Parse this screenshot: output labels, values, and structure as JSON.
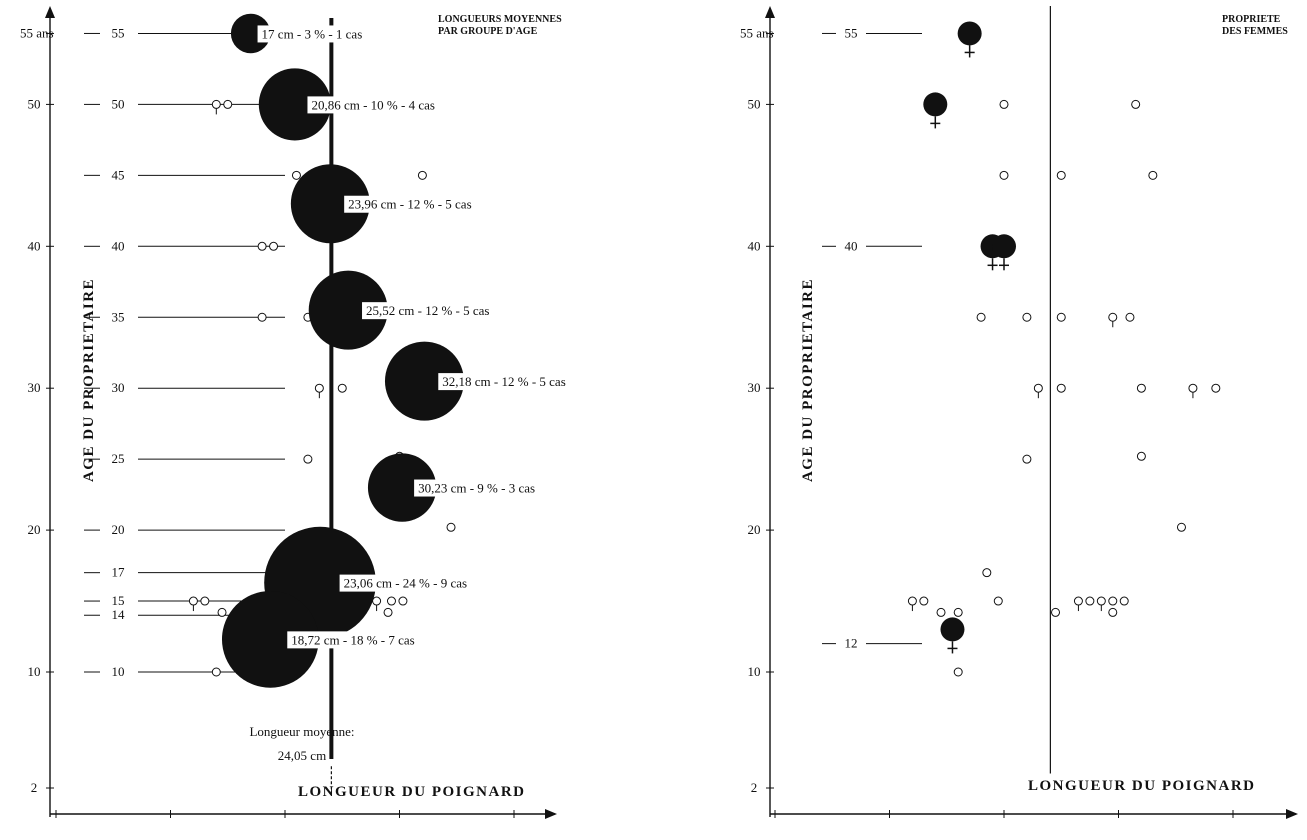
{
  "chart_data": [
    {
      "type": "scatter",
      "title": "LONGUEURS MOYENNES PAR GROUPE D'AGE",
      "xlabel": "LONGUEUR DU POIGNARD",
      "ylabel": "AGE DU PROPRIETAIRE",
      "x_unit": "cm",
      "y_unit": "ans",
      "xlim": [
        0,
        40
      ],
      "ylim": [
        0,
        55
      ],
      "x_ticks": [
        "0",
        "10",
        "20",
        "30",
        "40 cm"
      ],
      "y_ticks": [
        "2",
        "10",
        "20",
        "30",
        "40",
        "50",
        "55 ans"
      ],
      "mean_line": {
        "x": 24.05,
        "label": "Longueur moyenne:",
        "value_label": "24,05 cm"
      },
      "age_markers": [
        {
          "age": 55,
          "label": "55"
        },
        {
          "age": 50,
          "label": "50"
        },
        {
          "age": 45,
          "label": "45"
        },
        {
          "age": 40,
          "label": "40"
        },
        {
          "age": 35,
          "label": "35"
        },
        {
          "age": 30,
          "label": "30"
        },
        {
          "age": 25,
          "label": "25"
        },
        {
          "age": 20,
          "label": "20"
        },
        {
          "age": 17,
          "label": "17"
        },
        {
          "age": 15,
          "label": "15"
        },
        {
          "age": 14,
          "label": "14"
        },
        {
          "age": 10,
          "label": "10"
        }
      ],
      "group_means": [
        {
          "age": 55,
          "length": 17.0,
          "percent": 3,
          "cases": 1,
          "label": "17 cm - 3 % - 1 cas"
        },
        {
          "age": 50,
          "length": 20.86,
          "percent": 10,
          "cases": 4,
          "label": "20,86 cm - 10 % - 4 cas"
        },
        {
          "age": 43,
          "length": 23.96,
          "percent": 12,
          "cases": 5,
          "label": "23,96 cm - 12 % - 5 cas"
        },
        {
          "age": 35.5,
          "length": 25.52,
          "percent": 12,
          "cases": 5,
          "label": "25,52 cm - 12 % - 5 cas"
        },
        {
          "age": 30.5,
          "length": 32.18,
          "percent": 12,
          "cases": 5,
          "label": "32,18 cm - 12 % - 5 cas"
        },
        {
          "age": 23,
          "length": 30.23,
          "percent": 9,
          "cases": 3,
          "label": "30,23 cm - 9 % - 3 cas"
        },
        {
          "age": 16.3,
          "length": 23.06,
          "percent": 24,
          "cases": 9,
          "label": "23,06 cm - 24 % - 9 cas"
        },
        {
          "age": 12.3,
          "length": 18.72,
          "percent": 18,
          "cases": 7,
          "label": "18,72 cm - 18 % - 7 cas"
        }
      ],
      "points": [
        {
          "x": 14,
          "y": 50,
          "female": true
        },
        {
          "x": 15,
          "y": 50,
          "female": false
        },
        {
          "x": 21,
          "y": 45,
          "female": false
        },
        {
          "x": 25,
          "y": 45,
          "female": false
        },
        {
          "x": 32,
          "y": 45,
          "female": false
        },
        {
          "x": 18,
          "y": 40,
          "female": false
        },
        {
          "x": 19,
          "y": 40,
          "female": false
        },
        {
          "x": 18,
          "y": 35,
          "female": false
        },
        {
          "x": 22,
          "y": 35,
          "female": false
        },
        {
          "x": 23,
          "y": 30,
          "female": true
        },
        {
          "x": 25,
          "y": 30,
          "female": false
        },
        {
          "x": 22,
          "y": 25,
          "female": false
        },
        {
          "x": 30,
          "y": 25.2,
          "female": false
        },
        {
          "x": 34.5,
          "y": 20.2,
          "female": false
        },
        {
          "x": 20,
          "y": 17,
          "female": false
        },
        {
          "x": 12,
          "y": 15,
          "female": true
        },
        {
          "x": 13,
          "y": 15,
          "female": false
        },
        {
          "x": 14.5,
          "y": 14.2,
          "female": false
        },
        {
          "x": 26,
          "y": 15,
          "female": true
        },
        {
          "x": 27,
          "y": 15,
          "female": false
        },
        {
          "x": 28,
          "y": 15,
          "female": true
        },
        {
          "x": 29.3,
          "y": 15,
          "female": false
        },
        {
          "x": 30.3,
          "y": 15,
          "female": false
        },
        {
          "x": 29,
          "y": 14.2,
          "female": false
        },
        {
          "x": 14,
          "y": 10,
          "female": false
        }
      ]
    },
    {
      "type": "scatter",
      "title": "PROPRIETE DES FEMMES",
      "xlabel": "LONGUEUR DU POIGNARD",
      "ylabel": "AGE DU PROPRIETAIRE",
      "x_unit": "cm",
      "y_unit": "ans",
      "xlim": [
        0,
        40
      ],
      "ylim": [
        0,
        55
      ],
      "x_ticks": [
        "0",
        "10",
        "20",
        "30",
        "40 cm"
      ],
      "y_ticks": [
        "2",
        "10",
        "20",
        "30",
        "40",
        "50",
        "55 ans"
      ],
      "mean_line": {
        "x": 24.05
      },
      "age_markers": [
        {
          "age": 55,
          "label": "55"
        },
        {
          "age": 40,
          "label": "40"
        },
        {
          "age": 12,
          "label": "12"
        }
      ],
      "women": [
        {
          "x": 17,
          "y": 55
        },
        {
          "x": 14,
          "y": 50
        },
        {
          "x": 19,
          "y": 40
        },
        {
          "x": 20,
          "y": 40
        },
        {
          "x": 15.5,
          "y": 13
        }
      ],
      "points": [
        {
          "x": 20,
          "y": 50,
          "female": false
        },
        {
          "x": 31.5,
          "y": 50,
          "female": false
        },
        {
          "x": 20,
          "y": 45,
          "female": false
        },
        {
          "x": 25,
          "y": 45,
          "female": false
        },
        {
          "x": 33,
          "y": 45,
          "female": false
        },
        {
          "x": 18,
          "y": 35,
          "female": false
        },
        {
          "x": 22,
          "y": 35,
          "female": false
        },
        {
          "x": 25,
          "y": 35,
          "female": false
        },
        {
          "x": 29.5,
          "y": 35,
          "female": true
        },
        {
          "x": 31,
          "y": 35,
          "female": false
        },
        {
          "x": 23,
          "y": 30,
          "female": true
        },
        {
          "x": 25,
          "y": 30,
          "female": false
        },
        {
          "x": 32,
          "y": 30,
          "female": false
        },
        {
          "x": 36.5,
          "y": 30,
          "female": true
        },
        {
          "x": 38.5,
          "y": 30,
          "female": false
        },
        {
          "x": 22,
          "y": 25,
          "female": false
        },
        {
          "x": 32,
          "y": 25.2,
          "female": false
        },
        {
          "x": 35.5,
          "y": 20.2,
          "female": false
        },
        {
          "x": 18.5,
          "y": 17,
          "female": false
        },
        {
          "x": 12,
          "y": 15,
          "female": true
        },
        {
          "x": 13,
          "y": 15,
          "female": false
        },
        {
          "x": 14.5,
          "y": 14.2,
          "female": false
        },
        {
          "x": 16,
          "y": 14.2,
          "female": false
        },
        {
          "x": 19.5,
          "y": 15,
          "female": false
        },
        {
          "x": 24.5,
          "y": 14.2,
          "female": false
        },
        {
          "x": 26.5,
          "y": 15,
          "female": true
        },
        {
          "x": 27.5,
          "y": 15,
          "female": false
        },
        {
          "x": 28.5,
          "y": 15,
          "female": true
        },
        {
          "x": 29.5,
          "y": 15,
          "female": false
        },
        {
          "x": 30.5,
          "y": 15,
          "female": false
        },
        {
          "x": 29.5,
          "y": 14.2,
          "female": false
        },
        {
          "x": 16,
          "y": 10,
          "female": false
        }
      ]
    }
  ]
}
